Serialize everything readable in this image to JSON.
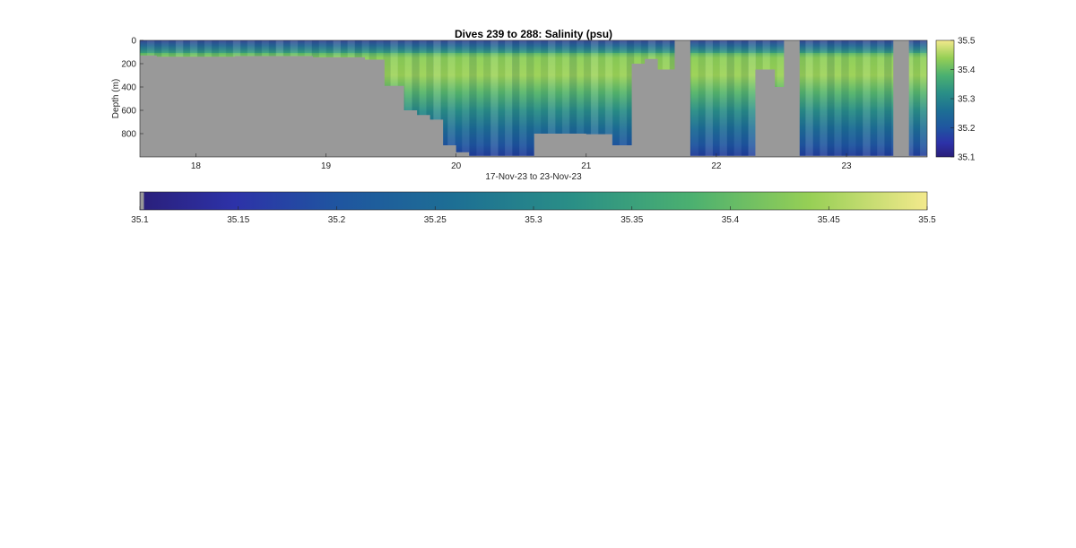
{
  "chart_data": {
    "type": "heatmap",
    "title": "Dives 239 to 288: Salinity (psu)",
    "xlabel": "17-Nov-23 to 23-Nov-23",
    "ylabel": "Depth (m)",
    "x_ticks": [
      "18",
      "19",
      "20",
      "21",
      "22",
      "23"
    ],
    "y_ticks": [
      "0",
      "200",
      "400",
      "600",
      "800"
    ],
    "xlim_days": [
      17.57,
      23.62
    ],
    "ylim_depth_m": [
      0,
      1000
    ],
    "y_reversed": true,
    "colorbar_ticks_side": [
      "35.5",
      "35.4",
      "35.3",
      "35.2",
      "35.1"
    ],
    "colorbar_ticks_bottom": [
      "35.1",
      "35.15",
      "35.2",
      "35.25",
      "35.3",
      "35.35",
      "35.4",
      "35.45",
      "35.5"
    ],
    "color_range_psu": [
      35.1,
      35.5
    ],
    "colormap": "parula",
    "no_data_color": "#999999",
    "bottom_profile": {
      "description": "maximum sampled depth (m) vs time (day of Nov-23); gray below",
      "day": [
        17.57,
        17.7,
        18.3,
        18.9,
        19.3,
        19.45,
        19.6,
        19.7,
        19.8,
        19.9,
        20.0,
        20.1,
        20.35,
        20.45,
        20.6,
        20.8,
        21.0,
        21.2,
        21.35,
        21.45,
        21.55,
        21.7,
        21.8,
        21.95,
        22.15,
        22.3,
        22.45,
        22.55,
        22.65,
        22.8,
        23.0,
        23.35,
        23.5,
        23.62
      ],
      "max_depth_m": [
        130,
        140,
        135,
        145,
        165,
        390,
        600,
        640,
        680,
        900,
        960,
        990,
        990,
        990,
        800,
        800,
        805,
        900,
        200,
        160,
        250,
        990,
        990,
        990,
        990,
        250,
        400,
        990,
        990,
        990,
        990,
        990,
        990,
        120
      ]
    },
    "gaps": [
      {
        "day_start": 21.68,
        "day_end": 21.8
      },
      {
        "day_start": 22.52,
        "day_end": 22.64
      },
      {
        "day_start": 23.36,
        "day_end": 23.48
      }
    ]
  }
}
